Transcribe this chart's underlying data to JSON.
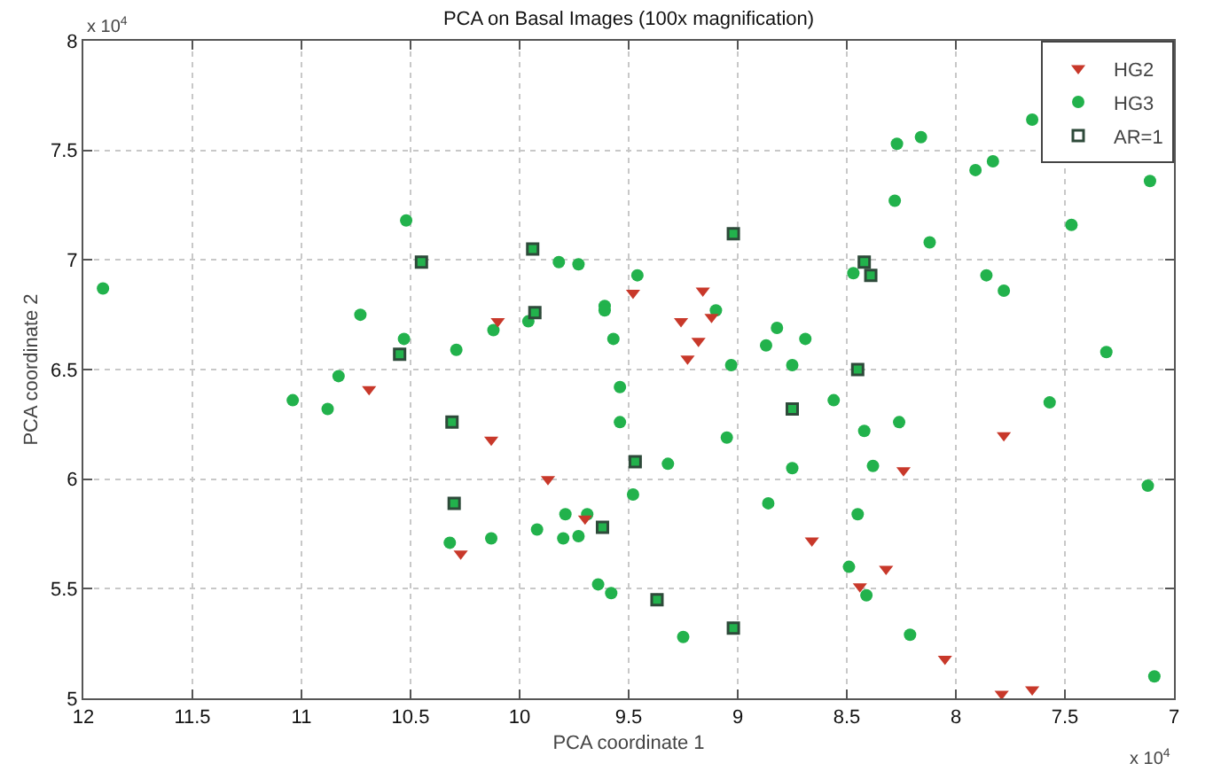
{
  "chart_data": {
    "type": "scatter",
    "title": "PCA on Basal Images (100x magnification)",
    "xlabel": "PCA coordinate 1",
    "ylabel": "PCA coordinate 2",
    "xlim": [
      12,
      7
    ],
    "xticks": [
      12,
      11.5,
      11,
      10.5,
      10,
      9.5,
      9,
      8.5,
      8,
      7.5,
      7
    ],
    "ylim": [
      5,
      8
    ],
    "yticks": [
      5,
      5.5,
      6,
      6.5,
      7,
      7.5,
      8
    ],
    "grid": true,
    "legend": "top right",
    "annotations": [
      "x 10$^{4}$",
      "x 10$^{4}$"
    ],
    "series": [
      {
        "name": "HG2",
        "color": "#c8382a",
        "marker": "triangle",
        "x": [
          10.1,
          9.48,
          9.16,
          9.26,
          9.12,
          9.18,
          9.23,
          10.69,
          10.13,
          9.87,
          10.27,
          9.7,
          8.24,
          8.66,
          8.32,
          8.44,
          8.05,
          7.79,
          7.65,
          7.78
        ],
        "values": [
          6.72,
          6.85,
          6.86,
          6.72,
          6.74,
          6.63,
          6.55,
          6.41,
          6.18,
          6.0,
          5.66,
          5.82,
          6.04,
          5.72,
          5.59,
          5.51,
          5.18,
          5.02,
          5.04,
          6.2
        ]
      },
      {
        "name": "HG3",
        "color": "#22b24c",
        "marker": "circle",
        "x": [
          11.91,
          10.52,
          10.45,
          10.73,
          10.53,
          10.55,
          10.29,
          10.12,
          9.96,
          9.94,
          9.93,
          9.82,
          9.73,
          9.61,
          9.61,
          9.57,
          9.46,
          9.1,
          9.02,
          9.03,
          8.82,
          8.87,
          8.69,
          8.75,
          8.45,
          8.47,
          8.42,
          8.39,
          8.27,
          8.16,
          8.28,
          8.12,
          7.91,
          7.83,
          7.65,
          7.86,
          7.78,
          7.47,
          7.11,
          7.31,
          11.04,
          10.88,
          10.83,
          10.31,
          10.3,
          10.32,
          10.13,
          9.92,
          9.79,
          9.8,
          9.73,
          9.69,
          9.62,
          9.64,
          9.58,
          9.54,
          9.54,
          9.47,
          9.48,
          9.32,
          9.37,
          9.25,
          9.02,
          8.75,
          9.05,
          8.75,
          8.56,
          8.42,
          8.26,
          8.38,
          8.86,
          8.45,
          8.49,
          8.41,
          8.21,
          7.57,
          7.12,
          7.09
        ],
        "values": [
          6.87,
          7.18,
          6.99,
          6.75,
          6.64,
          6.57,
          6.59,
          6.68,
          6.72,
          7.05,
          6.76,
          6.99,
          6.98,
          6.79,
          6.77,
          6.64,
          6.93,
          6.77,
          7.12,
          6.52,
          6.69,
          6.61,
          6.64,
          6.52,
          6.5,
          6.94,
          6.99,
          6.93,
          7.53,
          7.56,
          7.27,
          7.08,
          7.41,
          7.45,
          7.64,
          6.93,
          6.86,
          7.16,
          7.36,
          6.58,
          6.36,
          6.32,
          6.47,
          6.26,
          5.89,
          5.71,
          5.73,
          5.77,
          5.84,
          5.73,
          5.74,
          5.84,
          5.78,
          5.52,
          5.48,
          6.42,
          6.26,
          6.08,
          5.93,
          6.07,
          5.45,
          5.28,
          5.32,
          6.32,
          6.19,
          6.05,
          6.36,
          6.22,
          6.26,
          6.06,
          5.89,
          5.84,
          5.6,
          5.47,
          5.29,
          6.35,
          5.97,
          5.1
        ]
      },
      {
        "name": "AR=1",
        "color": "#2e4a3a",
        "marker": "square",
        "x": [
          10.45,
          10.55,
          9.94,
          9.93,
          9.02,
          8.45,
          8.42,
          8.39,
          10.31,
          10.3,
          9.62,
          9.47,
          9.37,
          9.02,
          8.75
        ],
        "values": [
          6.99,
          6.57,
          7.05,
          6.76,
          7.12,
          6.5,
          6.99,
          6.93,
          6.26,
          5.89,
          5.78,
          6.08,
          5.45,
          5.32,
          6.32
        ]
      }
    ]
  }
}
